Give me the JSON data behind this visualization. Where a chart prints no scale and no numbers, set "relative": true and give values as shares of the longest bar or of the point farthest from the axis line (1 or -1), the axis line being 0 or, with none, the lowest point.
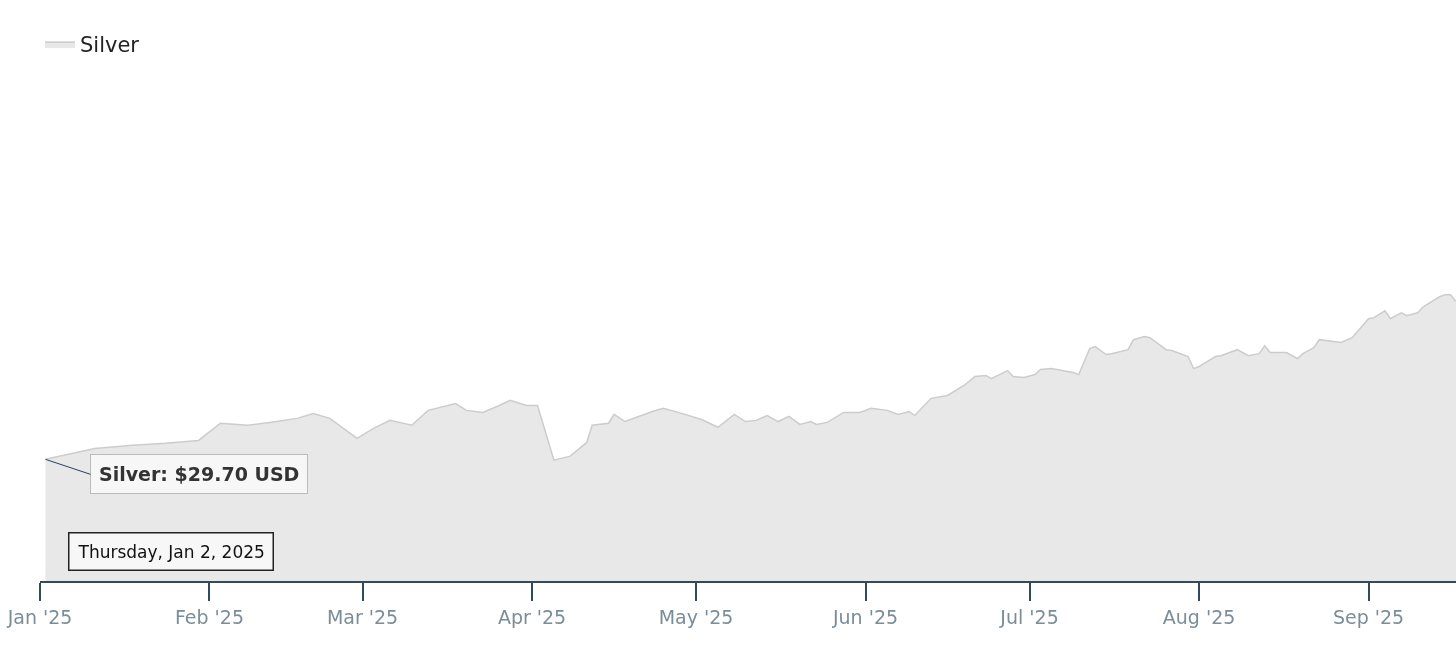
{
  "chart_data": {
    "type": "area",
    "relative": true,
    "x": [
      "2025-01-02",
      "2025-01-11",
      "2025-01-18",
      "2025-01-24",
      "2025-01-30",
      "2025-02-03",
      "2025-02-08",
      "2025-02-12",
      "2025-02-17",
      "2025-02-20",
      "2025-02-23",
      "2025-02-26",
      "2025-02-28",
      "2025-03-03",
      "2025-03-06",
      "2025-03-10",
      "2025-03-13",
      "2025-03-18",
      "2025-03-20",
      "2025-03-23",
      "2025-03-26",
      "2025-03-28",
      "2025-03-31",
      "2025-04-02",
      "2025-04-05",
      "2025-04-08",
      "2025-04-11",
      "2025-04-12",
      "2025-04-15",
      "2025-04-16",
      "2025-04-18",
      "2025-04-23",
      "2025-04-25",
      "2025-04-29",
      "2025-05-02",
      "2025-05-05",
      "2025-05-08",
      "2025-05-10",
      "2025-05-12",
      "2025-05-14",
      "2025-05-16",
      "2025-05-18",
      "2025-05-20",
      "2025-05-22",
      "2025-05-23",
      "2025-05-25",
      "2025-05-28",
      "2025-05-31",
      "2025-06-02",
      "2025-06-05",
      "2025-06-07",
      "2025-06-09",
      "2025-06-10",
      "2025-06-13",
      "2025-06-16",
      "2025-06-19",
      "2025-06-21",
      "2025-06-23",
      "2025-06-24",
      "2025-06-27",
      "2025-06-28",
      "2025-06-30",
      "2025-07-02",
      "2025-07-03",
      "2025-07-05",
      "2025-07-09",
      "2025-07-10",
      "2025-07-12",
      "2025-07-13",
      "2025-07-15",
      "2025-07-16",
      "2025-07-19",
      "2025-07-20",
      "2025-07-22",
      "2025-07-23",
      "2025-07-26",
      "2025-07-27",
      "2025-07-30",
      "2025-07-31",
      "2025-08-01",
      "2025-08-04",
      "2025-08-05",
      "2025-08-08",
      "2025-08-10",
      "2025-08-12",
      "2025-08-13",
      "2025-08-14",
      "2025-08-17",
      "2025-08-19",
      "2025-08-20",
      "2025-08-22",
      "2025-08-23",
      "2025-08-27",
      "2025-08-29",
      "2025-09-01",
      "2025-09-02",
      "2025-09-04",
      "2025-09-05",
      "2025-09-07",
      "2025-09-08",
      "2025-09-10",
      "2025-09-11",
      "2025-09-14",
      "2025-09-15",
      "2025-09-16",
      "2025-09-17"
    ],
    "series": [
      {
        "name": "Silver",
        "color": "#cccccc",
        "values": [
          0.425,
          0.463,
          0.474,
          0.481,
          0.491,
          0.551,
          0.544,
          0.554,
          0.568,
          0.585,
          0.568,
          0.526,
          0.498,
          0.533,
          0.561,
          0.544,
          0.596,
          0.62,
          0.596,
          0.589,
          0.613,
          0.631,
          0.613,
          0.613,
          0.422,
          0.436,
          0.484,
          0.544,
          0.551,
          0.582,
          0.557,
          0.592,
          0.603,
          0.582,
          0.564,
          0.537,
          0.582,
          0.557,
          0.561,
          0.578,
          0.557,
          0.575,
          0.547,
          0.557,
          0.547,
          0.554,
          0.589,
          0.589,
          0.603,
          0.596,
          0.582,
          0.592,
          0.578,
          0.638,
          0.648,
          0.683,
          0.714,
          0.718,
          0.707,
          0.735,
          0.714,
          0.711,
          0.721,
          0.739,
          0.742,
          0.728,
          0.721,
          0.812,
          0.819,
          0.791,
          0.794,
          0.808,
          0.843,
          0.854,
          0.85,
          0.808,
          0.805,
          0.784,
          0.742,
          0.749,
          0.784,
          0.787,
          0.808,
          0.787,
          0.794,
          0.822,
          0.798,
          0.798,
          0.777,
          0.794,
          0.815,
          0.843,
          0.833,
          0.85,
          0.916,
          0.92,
          0.944,
          0.916,
          0.937,
          0.927,
          0.937,
          0.958,
          0.993,
          1,
          1,
          0.976
        ]
      }
    ],
    "xlim": [
      "2025-01-01",
      "2025-09-17"
    ],
    "xticks": [
      {
        "value": "2025-01-01",
        "label": "Jan '25"
      },
      {
        "value": "2025-02-01",
        "label": "Feb '25"
      },
      {
        "value": "2025-03-01",
        "label": "Mar '25"
      },
      {
        "value": "2025-04-01",
        "label": "Apr '25"
      },
      {
        "value": "2025-05-01",
        "label": "May '25"
      },
      {
        "value": "2025-06-01",
        "label": "Jun '25"
      },
      {
        "value": "2025-07-01",
        "label": "Jul '25"
      },
      {
        "value": "2025-08-01",
        "label": "Aug '25"
      },
      {
        "value": "2025-09-01",
        "label": "Sep '25"
      }
    ],
    "annotations": [
      {
        "text": "Silver: $29.70 USD",
        "x": "2025-01-02",
        "y": 0.425
      },
      "Thursday, Jan 2, 2025"
    ],
    "legend": "top left",
    "marker": "none",
    "line_style": "solid"
  }
}
